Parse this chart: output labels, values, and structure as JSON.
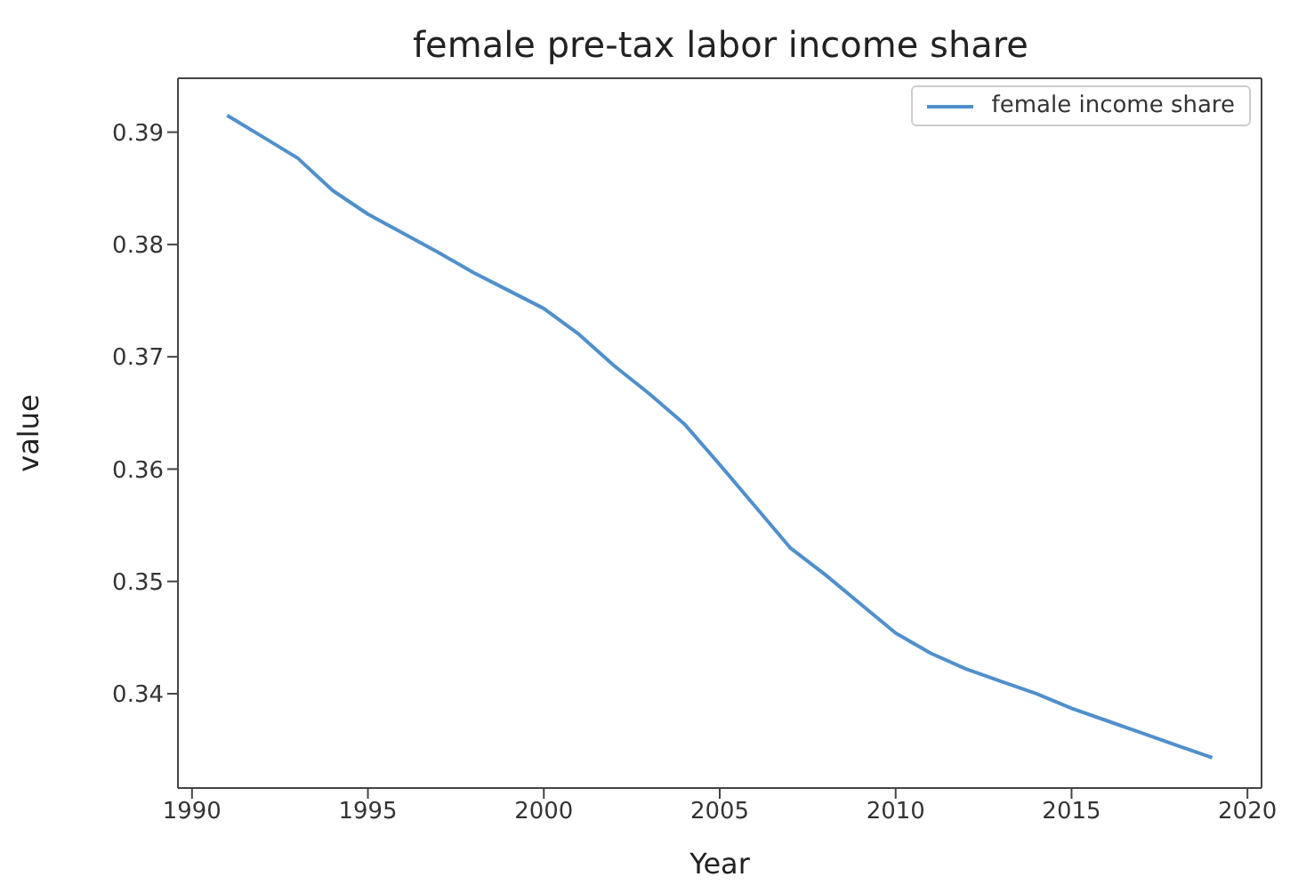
{
  "chart_data": {
    "type": "line",
    "title": "female pre-tax labor income share",
    "xlabel": "Year",
    "ylabel": "value",
    "x": [
      1991,
      1992,
      1993,
      1994,
      1995,
      1996,
      1997,
      1998,
      1999,
      2000,
      2001,
      2002,
      2003,
      2004,
      2005,
      2006,
      2007,
      2008,
      2009,
      2010,
      2011,
      2012,
      2013,
      2014,
      2015,
      2016,
      2017,
      2018,
      2019
    ],
    "series": [
      {
        "name": "female income share",
        "color": "#4f90cc",
        "values": [
          0.3915,
          0.3896,
          0.3877,
          0.3848,
          0.3827,
          0.381,
          0.3793,
          0.3775,
          0.3759,
          0.3743,
          0.372,
          0.3692,
          0.3667,
          0.364,
          0.3604,
          0.3567,
          0.353,
          0.3506,
          0.348,
          0.3454,
          0.3436,
          0.3422,
          0.3411,
          0.34,
          0.3387,
          0.3376,
          0.3365,
          0.3354,
          0.3343
        ]
      }
    ],
    "xlim": [
      1989.6,
      2020.4
    ],
    "ylim": [
      0.3316,
      0.3948
    ],
    "xticks": [
      1990,
      1995,
      2000,
      2005,
      2010,
      2015,
      2020
    ],
    "yticks": [
      0.34,
      0.35,
      0.36,
      0.37,
      0.38,
      0.39
    ],
    "legend": "top right",
    "marker": "none",
    "line_style": "solid",
    "grid": false
  }
}
